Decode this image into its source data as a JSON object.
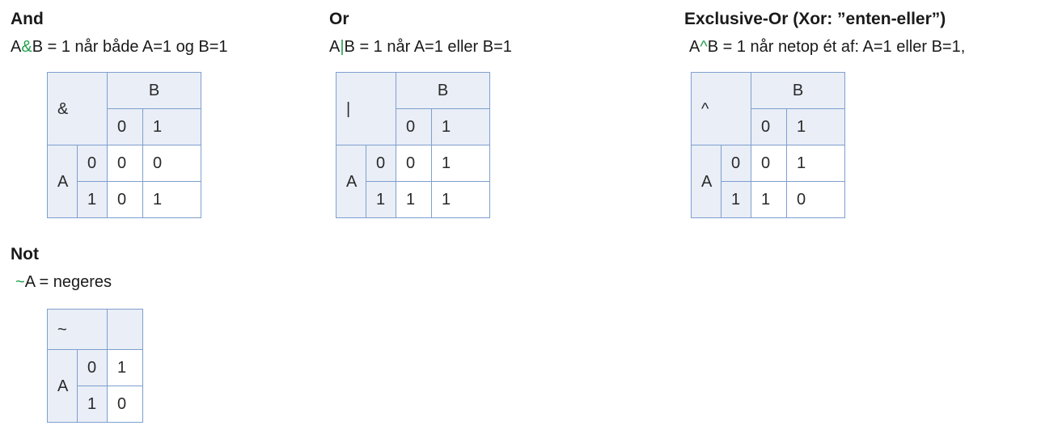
{
  "and": {
    "title": "And",
    "formula_a": "A",
    "formula_op": "&",
    "formula_rest": "B = 1 når både A=1 og B=1",
    "table": {
      "op": "&",
      "col_var": "B",
      "row_var": "A",
      "col_vals": [
        "0",
        "1"
      ],
      "row_vals": [
        "0",
        "1"
      ],
      "cells": [
        [
          "0",
          "0"
        ],
        [
          "0",
          "1"
        ]
      ]
    }
  },
  "or": {
    "title": "Or",
    "formula_a": "A",
    "formula_op": "|",
    "formula_rest": "B = 1 når  A=1 eller B=1",
    "table": {
      "op": "|",
      "col_var": "B",
      "row_var": "A",
      "col_vals": [
        "0",
        "1"
      ],
      "row_vals": [
        "0",
        "1"
      ],
      "cells": [
        [
          "0",
          "1"
        ],
        [
          "1",
          "1"
        ]
      ]
    }
  },
  "xor": {
    "title": "Exclusive-Or (Xor: ”enten-eller”)",
    "formula_a": "A",
    "formula_op": "^",
    "formula_rest": "B = 1 når netop ét af: A=1 eller B=1,",
    "table": {
      "op": "^",
      "col_var": "B",
      "row_var": "A",
      "col_vals": [
        "0",
        "1"
      ],
      "row_vals": [
        "0",
        "1"
      ],
      "cells": [
        [
          "0",
          "1"
        ],
        [
          "1",
          "0"
        ]
      ]
    }
  },
  "not": {
    "title": "Not",
    "formula_op": "~",
    "formula_rest": "A = negeres",
    "table": {
      "op": "~",
      "row_var": "A",
      "row_vals": [
        "0",
        "1"
      ],
      "cells": [
        "1",
        "0"
      ]
    }
  },
  "colors": {
    "operator": "#22a04b",
    "border": "#7f9fce",
    "header_fill": "#e9eef7"
  }
}
